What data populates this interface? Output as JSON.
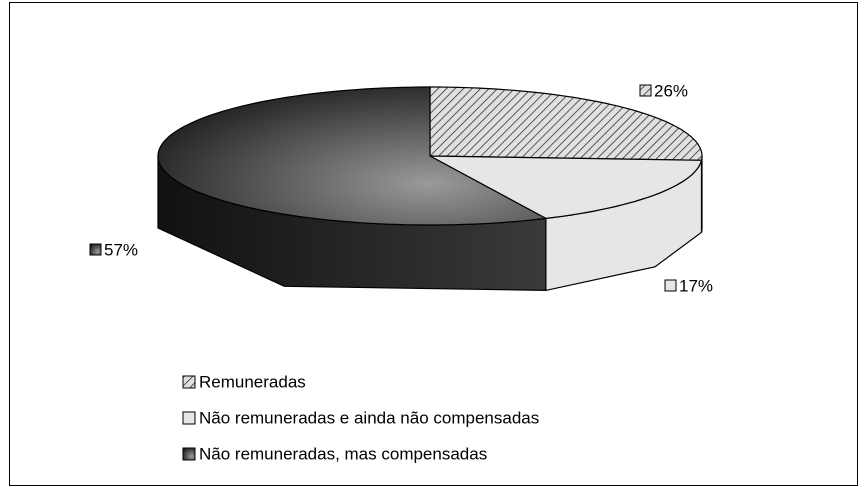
{
  "chart_data": {
    "type": "pie",
    "categories": [
      "Remuneradas",
      "Não remuneradas e ainda não compensadas",
      "Não remuneradas, mas compensadas"
    ],
    "values": [
      26,
      17,
      57
    ],
    "value_labels": [
      "26%",
      "17%",
      "57%"
    ],
    "colors": [
      "#d8d8d8",
      "#e6e6e6",
      "#555555"
    ],
    "hatch": [
      true,
      false,
      false
    ],
    "legend": "bottom"
  }
}
